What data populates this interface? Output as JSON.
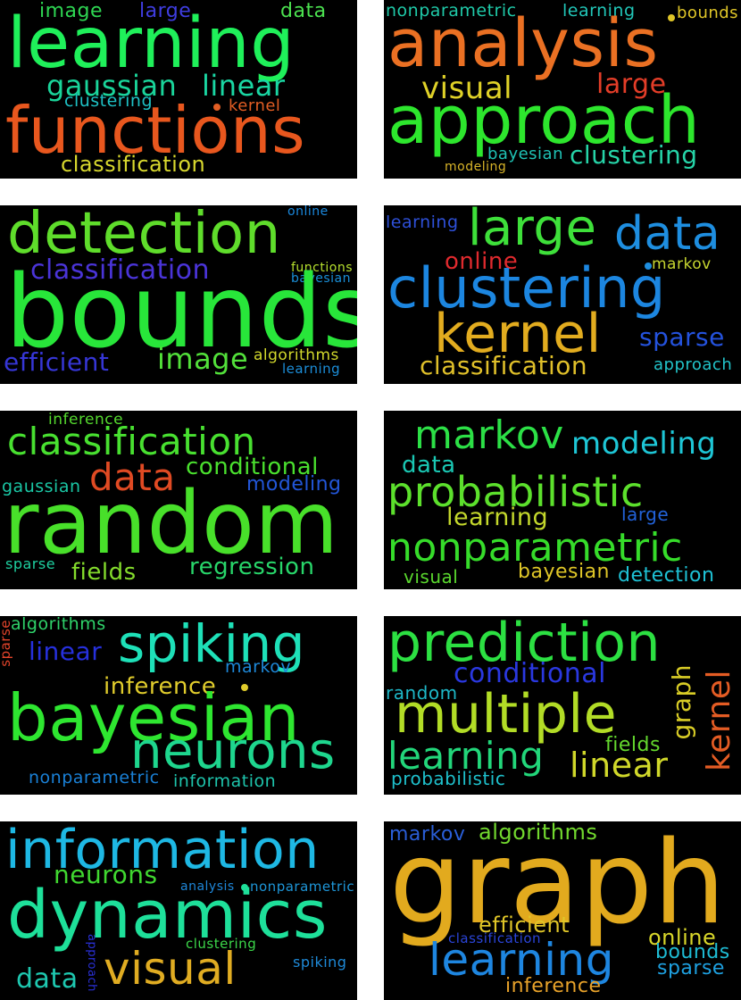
{
  "clouds": [
    {
      "words": [
        {
          "text": "image",
          "color": "#2ed552"
        },
        {
          "text": "large",
          "color": "#3f3de0"
        },
        {
          "text": "data",
          "color": "#4be04f"
        },
        {
          "text": "learning",
          "color": "#1ff05a"
        },
        {
          "text": "gaussian",
          "color": "#1ad49a"
        },
        {
          "text": "linear",
          "color": "#1ad6a3"
        },
        {
          "text": "clustering",
          "color": "#1ec0c4"
        },
        {
          "text": "kernel",
          "color": "#e35e24"
        },
        {
          "text": "functions",
          "color": "#e8571e"
        },
        {
          "text": "classification",
          "color": "#d8d82e"
        }
      ],
      "dots": [
        {
          "color": "#e35e24"
        }
      ]
    },
    {
      "words": [
        {
          "text": "nonparametric",
          "color": "#1fc9a8"
        },
        {
          "text": "learning",
          "color": "#21c6b8"
        },
        {
          "text": "bounds",
          "color": "#e0c628"
        },
        {
          "text": "analysis",
          "color": "#ea7023"
        },
        {
          "text": "visual",
          "color": "#e0d228"
        },
        {
          "text": "large",
          "color": "#e33d28"
        },
        {
          "text": "approach",
          "color": "#2de62d"
        },
        {
          "text": "bayesian",
          "color": "#1fc2b5"
        },
        {
          "text": "clustering",
          "color": "#26d4a8"
        },
        {
          "text": "modeling",
          "color": "#d9b529"
        }
      ],
      "dots": [
        {
          "color": "#e0c628"
        }
      ]
    },
    {
      "words": [
        {
          "text": "detection",
          "color": "#5fdd2b"
        },
        {
          "text": "online",
          "color": "#1a88dd"
        },
        {
          "text": "classification",
          "color": "#4a34d8"
        },
        {
          "text": "functions",
          "color": "#b6e02e"
        },
        {
          "text": "bayesian",
          "color": "#1a8fd8"
        },
        {
          "text": "bounds",
          "color": "#28e63a"
        },
        {
          "text": "efficient",
          "color": "#3636d6"
        },
        {
          "text": "image",
          "color": "#52e03a"
        },
        {
          "text": "algorithms",
          "color": "#d2d82c"
        },
        {
          "text": "learning",
          "color": "#1c8ed9"
        }
      ],
      "dots": []
    },
    {
      "words": [
        {
          "text": "learning",
          "color": "#2e50d8"
        },
        {
          "text": "large",
          "color": "#3ee03a"
        },
        {
          "text": "data",
          "color": "#1e8ee0"
        },
        {
          "text": "online",
          "color": "#e02a2e"
        },
        {
          "text": "markov",
          "color": "#c7d630"
        },
        {
          "text": "clustering",
          "color": "#1c86e0"
        },
        {
          "text": "kernel",
          "color": "#e2ac1f"
        },
        {
          "text": "sparse",
          "color": "#2452dd"
        },
        {
          "text": "classification",
          "color": "#e0c02a"
        },
        {
          "text": "approach",
          "color": "#22c4ca"
        }
      ],
      "dots": [
        {
          "color": "#1e8ee0"
        }
      ]
    },
    {
      "words": [
        {
          "text": "inference",
          "color": "#54d82e"
        },
        {
          "text": "classification",
          "color": "#48e030"
        },
        {
          "text": "data",
          "color": "#e04a23"
        },
        {
          "text": "conditional",
          "color": "#4ae02e"
        },
        {
          "text": "gaussian",
          "color": "#1ac6a4"
        },
        {
          "text": "modeling",
          "color": "#2256d8"
        },
        {
          "text": "random",
          "color": "#48e02a"
        },
        {
          "text": "sparse",
          "color": "#1ed0a0"
        },
        {
          "text": "fields",
          "color": "#84dc2c"
        },
        {
          "text": "regression",
          "color": "#28d66a"
        }
      ],
      "dots": []
    },
    {
      "words": [
        {
          "text": "markov",
          "color": "#2ce046"
        },
        {
          "text": "modeling",
          "color": "#1ec6d6"
        },
        {
          "text": "data",
          "color": "#1ac8b4"
        },
        {
          "text": "probabilistic",
          "color": "#5ce02c"
        },
        {
          "text": "learning",
          "color": "#c4d82c"
        },
        {
          "text": "large",
          "color": "#2262d8"
        },
        {
          "text": "nonparametric",
          "color": "#36dc2a"
        },
        {
          "text": "visual",
          "color": "#5ad82e"
        },
        {
          "text": "bayesian",
          "color": "#dfc628"
        },
        {
          "text": "detection",
          "color": "#1ec2d6"
        }
      ],
      "dots": []
    },
    {
      "words": [
        {
          "text": "algorithms",
          "color": "#2fd26a"
        },
        {
          "text": "sparse",
          "color": "#e2432a"
        },
        {
          "text": "linear",
          "color": "#2630dc"
        },
        {
          "text": "spiking",
          "color": "#1ee0b8"
        },
        {
          "text": "markov",
          "color": "#1e88d8"
        },
        {
          "text": "inference",
          "color": "#e0cc2c"
        },
        {
          "text": "bayesian",
          "color": "#2ee630"
        },
        {
          "text": "neurons",
          "color": "#1ed68e"
        },
        {
          "text": "nonparametric",
          "color": "#1a80d6"
        },
        {
          "text": "information",
          "color": "#1ec4ac"
        }
      ],
      "dots": [
        {
          "color": "#e0cc2c"
        }
      ]
    },
    {
      "words": [
        {
          "text": "prediction",
          "color": "#2ce042"
        },
        {
          "text": "conditional",
          "color": "#2a38e0"
        },
        {
          "text": "random",
          "color": "#1eb8c8"
        },
        {
          "text": "graph",
          "color": "#d8cc26"
        },
        {
          "text": "kernel",
          "color": "#e45c24"
        },
        {
          "text": "multiple",
          "color": "#b2dc26"
        },
        {
          "text": "fields",
          "color": "#64d82e"
        },
        {
          "text": "learning",
          "color": "#22d67a"
        },
        {
          "text": "linear",
          "color": "#d0d82a"
        },
        {
          "text": "probabilistic",
          "color": "#1ec0cc"
        }
      ],
      "dots": []
    },
    {
      "words": [
        {
          "text": "information",
          "color": "#1eb8e4"
        },
        {
          "text": "neurons",
          "color": "#40d830"
        },
        {
          "text": "analysis",
          "color": "#1e86d8"
        },
        {
          "text": "nonparametric",
          "color": "#1e96d8"
        },
        {
          "text": "dynamics",
          "color": "#1ee09a"
        },
        {
          "text": "clustering",
          "color": "#3cd84a"
        },
        {
          "text": "approach",
          "color": "#2a30d8"
        },
        {
          "text": "data",
          "color": "#1ec8b0"
        },
        {
          "text": "visual",
          "color": "#e0ac22"
        },
        {
          "text": "spiking",
          "color": "#1e8ad8"
        }
      ],
      "dots": [
        {
          "color": "#1ee09a"
        }
      ]
    },
    {
      "words": [
        {
          "text": "markov",
          "color": "#2a5ed8"
        },
        {
          "text": "algorithms",
          "color": "#72d82e"
        },
        {
          "text": "graph",
          "color": "#e2aa1e"
        },
        {
          "text": "efficient",
          "color": "#e0c628"
        },
        {
          "text": "classification",
          "color": "#2a44d8"
        },
        {
          "text": "online",
          "color": "#d8d62a"
        },
        {
          "text": "learning",
          "color": "#1e86e0"
        },
        {
          "text": "bounds",
          "color": "#1ebcd4"
        },
        {
          "text": "sparse",
          "color": "#1ea0e0"
        },
        {
          "text": "inference",
          "color": "#e8a22a"
        }
      ],
      "dots": []
    }
  ]
}
